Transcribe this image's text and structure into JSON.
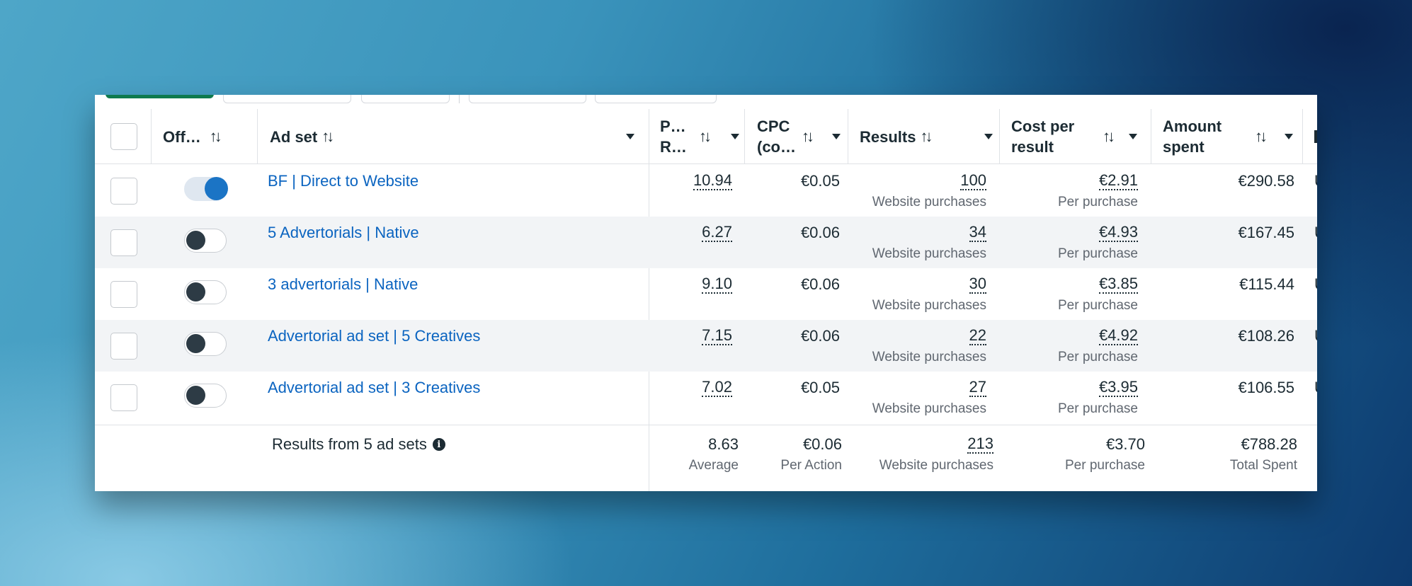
{
  "header": {
    "off_label": "Off…",
    "adset_label": "Ad set",
    "p_label_line1": "P…",
    "p_label_line2": "R…",
    "cpc_line1": "CPC",
    "cpc_line2": "(co…",
    "results_label": "Results",
    "cpr_line1": "Cost per",
    "cpr_line2": "result",
    "amount_line1": "Amount",
    "amount_line2": "spent",
    "sort_glyph": "↑↓"
  },
  "rows": [
    {
      "name": "BF | Direct to Website",
      "on": true,
      "p": "10.94",
      "cpc": "€0.05",
      "results": "100",
      "results_sub": "Website purchases",
      "cpr": "€2.91",
      "cpr_sub": "Per purchase",
      "spent": "€290.58",
      "edge": "U"
    },
    {
      "name": "5 Advertorials | Native",
      "on": false,
      "p": "6.27",
      "cpc": "€0.06",
      "results": "34",
      "results_sub": "Website purchases",
      "cpr": "€4.93",
      "cpr_sub": "Per purchase",
      "spent": "€167.45",
      "edge": "U"
    },
    {
      "name": "3 advertorials | Native",
      "on": false,
      "p": "9.10",
      "cpc": "€0.06",
      "results": "30",
      "results_sub": "Website purchases",
      "cpr": "€3.85",
      "cpr_sub": "Per purchase",
      "spent": "€115.44",
      "edge": "U"
    },
    {
      "name": "Advertorial ad set | 5 Creatives",
      "on": false,
      "p": "7.15",
      "cpc": "€0.06",
      "results": "22",
      "results_sub": "Website purchases",
      "cpr": "€4.92",
      "cpr_sub": "Per purchase",
      "spent": "€108.26",
      "edge": "U"
    },
    {
      "name": "Advertorial ad set | 3 Creatives",
      "on": false,
      "p": "7.02",
      "cpc": "€0.05",
      "results": "27",
      "results_sub": "Website purchases",
      "cpr": "€3.95",
      "cpr_sub": "Per purchase",
      "spent": "€106.55",
      "edge": "U"
    }
  ],
  "footer": {
    "title": "Results from 5 ad sets",
    "p_value": "8.63",
    "p_sub": "Average",
    "cpc_value": "€0.06",
    "cpc_sub": "Per Action",
    "results_value": "213",
    "results_sub": "Website purchases",
    "cpr_value": "€3.70",
    "cpr_sub": "Per purchase",
    "spent_value": "€788.28",
    "spent_sub": "Total Spent"
  },
  "colors": {
    "accent_green": "#0e7a4e",
    "link_blue": "#0b64c0",
    "toggle_on": "#1b74c5"
  }
}
